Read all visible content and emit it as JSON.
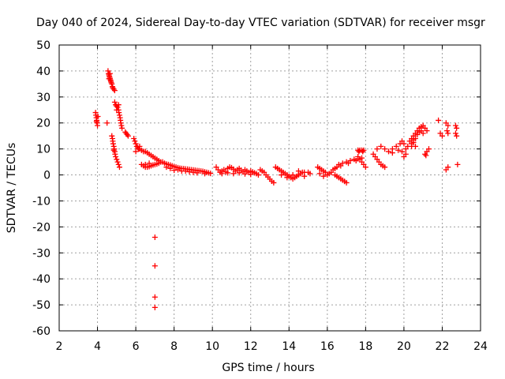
{
  "chart_data": {
    "type": "scatter",
    "title": "Day 040 of 2024, Sidereal Day-to-day VTEC variation (SDTVAR) for receiver msgr",
    "xlabel": "GPS time / hours",
    "ylabel": "SDTVAR / TECUs",
    "xlim": [
      2,
      24
    ],
    "ylim": [
      -60,
      50
    ],
    "xticks": [
      2,
      4,
      6,
      8,
      10,
      12,
      14,
      16,
      18,
      20,
      22,
      24
    ],
    "yticks": [
      -60,
      -50,
      -40,
      -30,
      -20,
      -10,
      0,
      10,
      20,
      30,
      40,
      50
    ],
    "grid": true,
    "marker": "+",
    "color": "#ff0000",
    "series": [
      {
        "name": "SDTVAR",
        "points": [
          [
            3.9,
            24
          ],
          [
            3.92,
            23
          ],
          [
            3.94,
            22
          ],
          [
            3.96,
            21
          ],
          [
            3.98,
            20
          ],
          [
            4.0,
            19
          ],
          [
            4.02,
            22.5
          ],
          [
            3.95,
            20.5
          ],
          [
            4.5,
            20
          ],
          [
            4.55,
            40
          ],
          [
            4.58,
            39
          ],
          [
            4.6,
            38.5
          ],
          [
            4.62,
            38
          ],
          [
            4.64,
            37.5
          ],
          [
            4.66,
            37
          ],
          [
            4.68,
            36.5
          ],
          [
            4.7,
            36
          ],
          [
            4.72,
            35.5
          ],
          [
            4.75,
            35
          ],
          [
            4.78,
            34
          ],
          [
            4.8,
            33.5
          ],
          [
            4.85,
            33
          ],
          [
            4.9,
            32.5
          ],
          [
            4.6,
            37
          ],
          [
            4.65,
            39
          ],
          [
            4.9,
            28
          ],
          [
            4.95,
            27
          ],
          [
            5.0,
            26.5
          ],
          [
            5.05,
            26
          ],
          [
            5.1,
            25
          ],
          [
            5.12,
            24
          ],
          [
            5.15,
            23
          ],
          [
            5.18,
            22
          ],
          [
            5.2,
            21
          ],
          [
            5.22,
            20
          ],
          [
            5.25,
            19
          ],
          [
            5.28,
            18
          ],
          [
            5.1,
            27
          ],
          [
            5.0,
            25
          ],
          [
            4.75,
            15
          ],
          [
            4.78,
            14
          ],
          [
            4.8,
            13
          ],
          [
            4.82,
            12
          ],
          [
            4.85,
            11
          ],
          [
            4.88,
            10
          ],
          [
            4.9,
            9
          ],
          [
            4.92,
            8
          ],
          [
            4.95,
            7
          ],
          [
            5.0,
            6
          ],
          [
            5.05,
            5
          ],
          [
            5.1,
            4
          ],
          [
            5.15,
            3
          ],
          [
            4.85,
            9.5
          ],
          [
            5.45,
            16.5
          ],
          [
            5.5,
            16
          ],
          [
            5.55,
            15.5
          ],
          [
            5.6,
            15
          ],
          [
            5.9,
            14
          ],
          [
            5.95,
            13
          ],
          [
            6.0,
            12
          ],
          [
            6.05,
            11
          ],
          [
            6.1,
            10.5
          ],
          [
            6.15,
            10
          ],
          [
            6.2,
            10
          ],
          [
            6.3,
            9.5
          ],
          [
            6.4,
            9
          ],
          [
            6.5,
            9
          ],
          [
            6.6,
            8.5
          ],
          [
            6.7,
            8
          ],
          [
            6.8,
            7.5
          ],
          [
            6.9,
            7
          ],
          [
            7.0,
            6.5
          ],
          [
            7.1,
            6
          ],
          [
            7.2,
            5.5
          ],
          [
            7.3,
            5
          ],
          [
            6.0,
            9
          ],
          [
            6.2,
            11
          ],
          [
            6.3,
            4
          ],
          [
            6.4,
            3.5
          ],
          [
            6.5,
            3
          ],
          [
            6.6,
            3
          ],
          [
            6.7,
            3.2
          ],
          [
            6.8,
            3.5
          ],
          [
            6.9,
            3.8
          ],
          [
            7.0,
            4
          ],
          [
            7.1,
            4.2
          ],
          [
            7.2,
            4.5
          ],
          [
            6.5,
            4
          ],
          [
            6.7,
            4.5
          ],
          [
            7.0,
            -24
          ],
          [
            7.0,
            -35
          ],
          [
            7.0,
            -47
          ],
          [
            7.0,
            -51
          ],
          [
            7.4,
            5
          ],
          [
            7.5,
            4.5
          ],
          [
            7.6,
            4.2
          ],
          [
            7.7,
            4
          ],
          [
            7.8,
            3.8
          ],
          [
            7.9,
            3.5
          ],
          [
            8.0,
            3.2
          ],
          [
            8.1,
            3
          ],
          [
            8.2,
            2.8
          ],
          [
            8.3,
            2.6
          ],
          [
            8.4,
            2.5
          ],
          [
            8.5,
            2.4
          ],
          [
            8.6,
            2.3
          ],
          [
            8.7,
            2.2
          ],
          [
            8.8,
            2.1
          ],
          [
            8.9,
            2.0
          ],
          [
            9.0,
            1.9
          ],
          [
            9.1,
            1.8
          ],
          [
            9.2,
            1.7
          ],
          [
            9.3,
            1.6
          ],
          [
            9.4,
            1.5
          ],
          [
            9.5,
            1.4
          ],
          [
            9.6,
            1.2
          ],
          [
            9.7,
            1.0
          ],
          [
            9.8,
            0.8
          ],
          [
            9.9,
            0.6
          ],
          [
            7.6,
            3
          ],
          [
            8.0,
            1.8
          ],
          [
            8.4,
            1.5
          ],
          [
            8.8,
            1.2
          ],
          [
            9.2,
            0.8
          ],
          [
            9.6,
            0.5
          ],
          [
            7.8,
            2.5
          ],
          [
            8.2,
            2
          ],
          [
            8.6,
            1.5
          ],
          [
            9.0,
            1
          ],
          [
            10.2,
            3
          ],
          [
            10.3,
            2
          ],
          [
            10.4,
            1
          ],
          [
            10.5,
            1.5
          ],
          [
            10.6,
            2
          ],
          [
            10.7,
            1.2
          ],
          [
            10.8,
            2.5
          ],
          [
            10.9,
            3
          ],
          [
            11.0,
            2.8
          ],
          [
            11.1,
            2.2
          ],
          [
            11.2,
            1.5
          ],
          [
            11.3,
            2
          ],
          [
            11.4,
            2.5
          ],
          [
            11.5,
            1.8
          ],
          [
            11.6,
            1.2
          ],
          [
            11.7,
            2
          ],
          [
            11.8,
            1.5
          ],
          [
            11.9,
            1
          ],
          [
            12.0,
            1.5
          ],
          [
            12.1,
            1.2
          ],
          [
            12.2,
            0.8
          ],
          [
            12.3,
            0.5
          ],
          [
            12.4,
            0
          ],
          [
            10.5,
            0.5
          ],
          [
            10.8,
            0.8
          ],
          [
            11.1,
            0.5
          ],
          [
            11.4,
            0.8
          ],
          [
            11.7,
            0.4
          ],
          [
            12.0,
            0.2
          ],
          [
            12.5,
            2
          ],
          [
            12.6,
            1.5
          ],
          [
            12.7,
            1
          ],
          [
            12.8,
            0
          ],
          [
            12.9,
            -0.8
          ],
          [
            13.0,
            -1.6
          ],
          [
            13.1,
            -2.4
          ],
          [
            13.2,
            -3
          ],
          [
            13.3,
            3
          ],
          [
            13.4,
            2.5
          ],
          [
            13.5,
            2
          ],
          [
            13.6,
            1.5
          ],
          [
            13.7,
            1
          ],
          [
            13.8,
            0.5
          ],
          [
            13.9,
            0
          ],
          [
            14.0,
            -0.5
          ],
          [
            14.1,
            -1
          ],
          [
            14.2,
            -1.5
          ],
          [
            14.3,
            -1
          ],
          [
            14.4,
            -0.5
          ],
          [
            14.5,
            0
          ],
          [
            14.6,
            0.5
          ],
          [
            14.7,
            1
          ],
          [
            14.8,
            1
          ],
          [
            13.6,
            0
          ],
          [
            13.9,
            -1
          ],
          [
            14.2,
            0
          ],
          [
            14.5,
            1.5
          ],
          [
            14.8,
            -0.5
          ],
          [
            15.0,
            1
          ],
          [
            15.1,
            0.5
          ],
          [
            15.5,
            3
          ],
          [
            15.6,
            2.5
          ],
          [
            15.7,
            2
          ],
          [
            15.8,
            1.5
          ],
          [
            15.9,
            1
          ],
          [
            16.0,
            0
          ],
          [
            16.1,
            0.5
          ],
          [
            16.2,
            1
          ],
          [
            16.4,
            0
          ],
          [
            16.5,
            -0.5
          ],
          [
            16.6,
            -1
          ],
          [
            16.7,
            -1.5
          ],
          [
            16.8,
            -2
          ],
          [
            16.9,
            -2.5
          ],
          [
            17.0,
            -3
          ],
          [
            15.6,
            0.5
          ],
          [
            15.8,
            -0.5
          ],
          [
            16.3,
            2
          ],
          [
            16.5,
            3
          ],
          [
            16.6,
            4
          ],
          [
            16.8,
            4.5
          ],
          [
            17.0,
            5
          ],
          [
            17.2,
            5.5
          ],
          [
            17.4,
            6
          ],
          [
            17.6,
            6.2
          ],
          [
            17.8,
            6.5
          ],
          [
            16.4,
            2.5
          ],
          [
            16.7,
            3.5
          ],
          [
            17.1,
            4.5
          ],
          [
            17.5,
            5.5
          ],
          [
            17.6,
            9.5
          ],
          [
            17.7,
            9.5
          ],
          [
            17.8,
            9.5
          ],
          [
            17.9,
            9.5
          ],
          [
            17.65,
            9
          ],
          [
            17.85,
            9
          ],
          [
            17.6,
            7
          ],
          [
            17.7,
            6
          ],
          [
            17.8,
            5
          ],
          [
            17.9,
            4
          ],
          [
            18.0,
            3
          ],
          [
            18.4,
            8
          ],
          [
            18.5,
            7
          ],
          [
            18.6,
            6
          ],
          [
            18.7,
            5
          ],
          [
            18.8,
            4
          ],
          [
            18.9,
            3.5
          ],
          [
            19.0,
            3
          ],
          [
            18.6,
            10
          ],
          [
            18.8,
            11
          ],
          [
            19.0,
            10
          ],
          [
            19.2,
            9
          ],
          [
            19.4,
            10
          ],
          [
            19.6,
            11
          ],
          [
            19.4,
            8.5
          ],
          [
            19.7,
            9.5
          ],
          [
            19.8,
            12
          ],
          [
            19.9,
            13
          ],
          [
            20.0,
            12
          ],
          [
            20.2,
            11
          ],
          [
            20.4,
            12
          ],
          [
            20.6,
            11
          ],
          [
            19.9,
            9
          ],
          [
            20.1,
            10
          ],
          [
            20.0,
            7
          ],
          [
            20.1,
            8
          ],
          [
            20.3,
            13
          ],
          [
            20.4,
            14
          ],
          [
            20.5,
            15
          ],
          [
            20.6,
            16
          ],
          [
            20.7,
            17
          ],
          [
            20.8,
            18
          ],
          [
            20.9,
            18.5
          ],
          [
            21.0,
            19
          ],
          [
            21.1,
            18
          ],
          [
            21.2,
            17
          ],
          [
            20.5,
            12.5
          ],
          [
            20.6,
            14
          ],
          [
            20.7,
            15.5
          ],
          [
            20.8,
            16.5
          ],
          [
            20.9,
            17
          ],
          [
            21.0,
            16
          ],
          [
            20.4,
            11
          ],
          [
            20.5,
            13.5
          ],
          [
            21.1,
            8
          ],
          [
            21.2,
            9
          ],
          [
            21.3,
            10
          ],
          [
            21.15,
            7.5
          ],
          [
            21.8,
            21
          ],
          [
            21.9,
            16
          ],
          [
            22.0,
            15
          ],
          [
            22.2,
            20
          ],
          [
            22.3,
            19
          ],
          [
            22.25,
            17
          ],
          [
            22.3,
            16
          ],
          [
            22.7,
            19
          ],
          [
            22.75,
            18
          ],
          [
            22.7,
            16
          ],
          [
            22.75,
            15
          ],
          [
            22.2,
            2
          ],
          [
            22.3,
            3
          ],
          [
            22.8,
            4
          ]
        ]
      }
    ]
  }
}
